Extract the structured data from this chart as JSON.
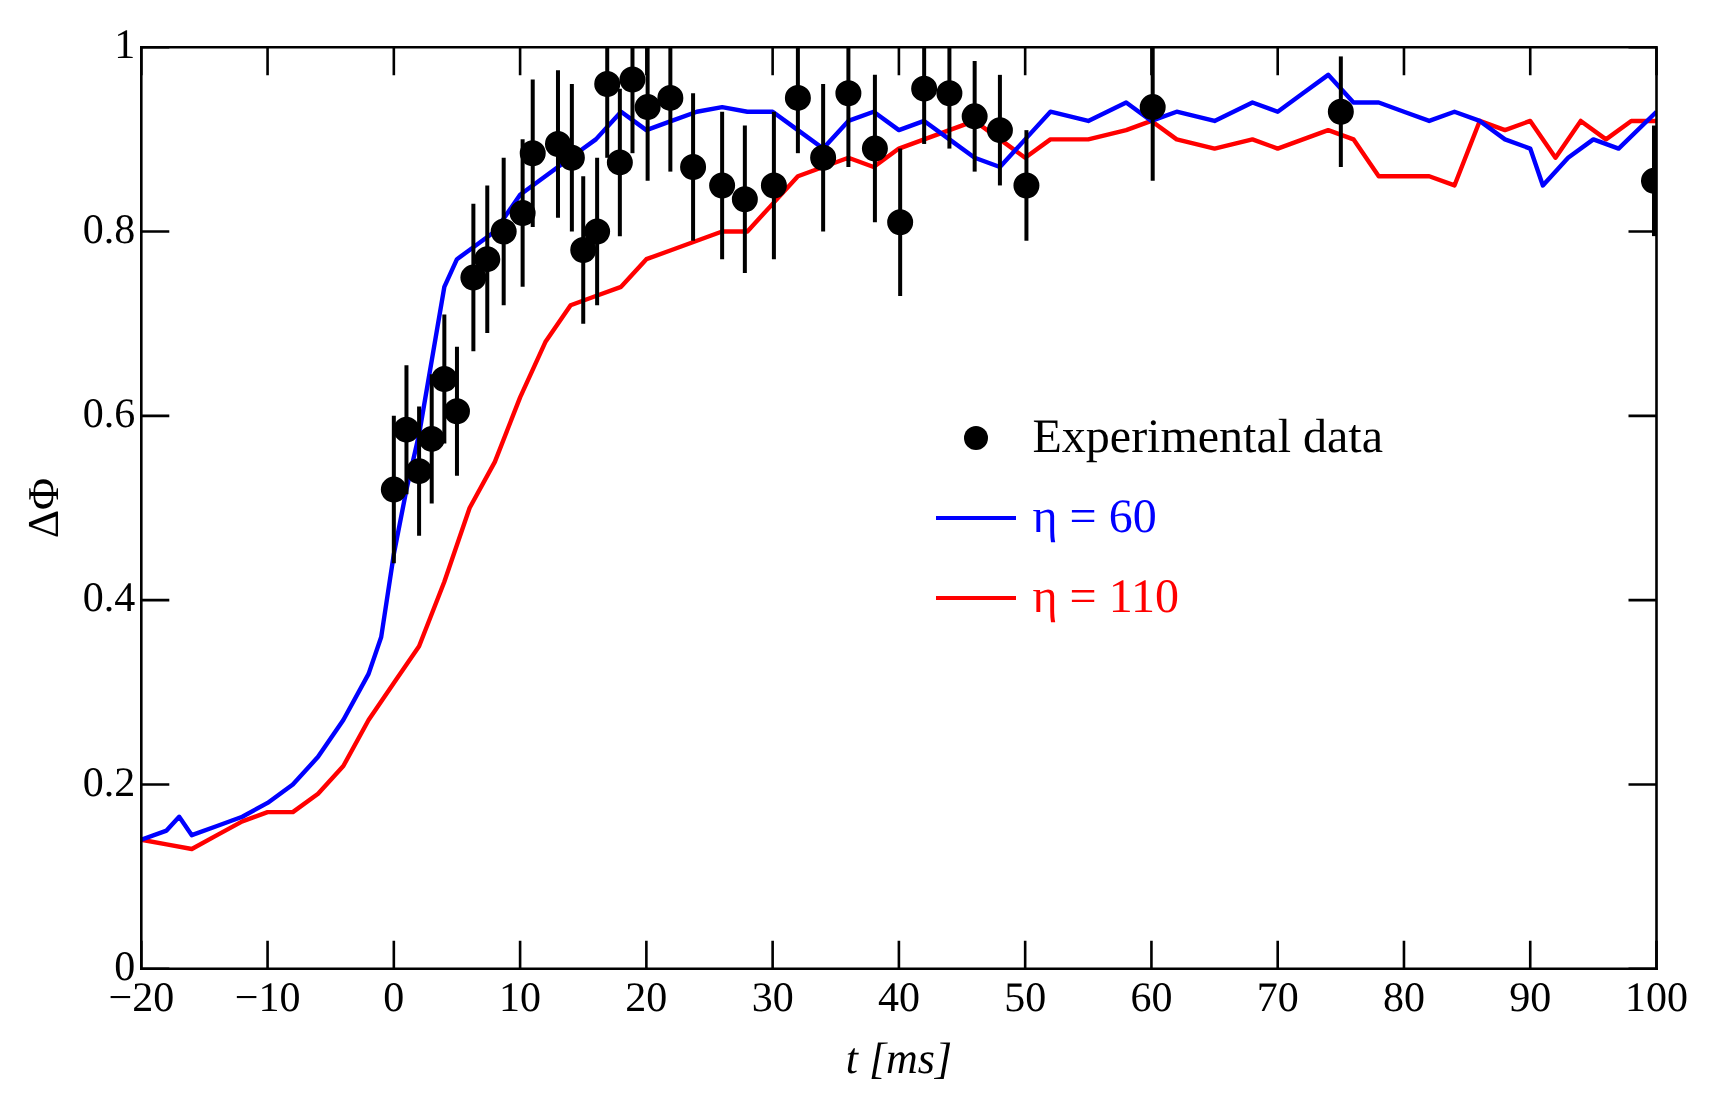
{
  "chart_data": {
    "type": "line",
    "xlabel": "t [ms]",
    "ylabel": "ΔΦ",
    "xlim": [
      -20,
      100
    ],
    "xticks": [
      {
        "value": -20,
        "label": "−20"
      },
      {
        "value": -10,
        "label": "−10"
      },
      0,
      10,
      20,
      30,
      40,
      50,
      60,
      70,
      80,
      90,
      100
    ],
    "ylim": [
      0,
      1
    ],
    "yticks": [
      0,
      0.2,
      0.4,
      0.6,
      0.8,
      1
    ],
    "grid": false,
    "legend": "right",
    "marker": "none",
    "line_style": "solid",
    "series": [
      {
        "name": "Experimental data",
        "type": "scatter",
        "marker": "circle",
        "color": "#000000",
        "x": [
          0,
          1,
          2,
          3,
          4,
          5,
          6.3,
          7.4,
          8.7,
          10.2,
          11,
          13,
          14.1,
          15,
          16.1,
          16.9,
          17.9,
          18.9,
          20.1,
          21.9,
          23.7,
          26,
          27.8,
          30.1,
          32,
          34,
          36,
          38.1,
          40.1,
          42,
          44,
          46,
          48,
          50.1,
          60.1,
          75,
          99.8
        ],
        "values": [
          0.52,
          0.585,
          0.54,
          0.575,
          0.64,
          0.605,
          0.75,
          0.77,
          0.8,
          0.82,
          0.885,
          0.895,
          0.88,
          0.78,
          0.8,
          0.96,
          0.875,
          0.965,
          0.935,
          0.945,
          0.87,
          0.85,
          0.835,
          0.85,
          0.945,
          0.88,
          0.95,
          0.89,
          0.81,
          0.955,
          0.95,
          0.925,
          0.91,
          0.85,
          0.935,
          0.93,
          0.855
        ],
        "errors": [
          0.08,
          0.07,
          0.07,
          0.07,
          0.07,
          0.07,
          0.08,
          0.08,
          0.08,
          0.08,
          0.08,
          0.08,
          0.08,
          0.08,
          0.08,
          [
            0.88,
            1
          ],
          0.08,
          [
            0.885,
            1
          ],
          [
            0.855,
            1
          ],
          [
            0.865,
            1
          ],
          0.08,
          0.08,
          0.08,
          0.08,
          [
            0.885,
            1
          ],
          0.08,
          [
            0.87,
            1
          ],
          0.08,
          0.08,
          [
            0.895,
            1
          ],
          [
            0.89,
            1
          ],
          0.06,
          0.06,
          0.06,
          [
            0.855,
            1
          ],
          0.06,
          0.06
        ]
      },
      {
        "name": "η = 60",
        "color": "#0000ff",
        "x": [
          -20,
          -18,
          -17,
          -16,
          -14,
          -12,
          -10,
          -8,
          -6,
          -4,
          -2,
          -1,
          0,
          1,
          2,
          3,
          4,
          5,
          6,
          8,
          10,
          12,
          15,
          16,
          18,
          20,
          22,
          24,
          26,
          28,
          30,
          32,
          34,
          36,
          38,
          40,
          42,
          44,
          46,
          48,
          50,
          52,
          55,
          58,
          60,
          62,
          65,
          68,
          70,
          72,
          74,
          76,
          78,
          80,
          82,
          84,
          86,
          88,
          90,
          91,
          93,
          95,
          97,
          100
        ],
        "values": [
          0.14,
          0.15,
          0.165,
          0.145,
          0.155,
          0.165,
          0.18,
          0.2,
          0.23,
          0.27,
          0.32,
          0.36,
          0.45,
          0.52,
          0.58,
          0.66,
          0.74,
          0.77,
          0.78,
          0.8,
          0.84,
          0.86,
          0.89,
          0.9,
          0.93,
          0.91,
          0.92,
          0.93,
          0.935,
          0.93,
          0.93,
          0.91,
          0.89,
          0.92,
          0.93,
          0.91,
          0.92,
          0.9,
          0.88,
          0.87,
          0.9,
          0.93,
          0.92,
          0.94,
          0.92,
          0.93,
          0.92,
          0.94,
          0.93,
          0.95,
          0.97,
          0.94,
          0.94,
          0.93,
          0.92,
          0.93,
          0.92,
          0.9,
          0.89,
          0.85,
          0.88,
          0.9,
          0.89,
          0.93
        ]
      },
      {
        "name": "η = 110",
        "color": "#ff0000",
        "x": [
          -20,
          -18,
          -16,
          -14,
          -12,
          -10,
          -8,
          -6,
          -4,
          -2,
          0,
          2,
          4,
          6,
          8,
          10,
          12,
          14,
          16,
          18,
          20,
          22,
          24,
          26,
          28,
          30,
          32,
          34,
          36,
          38,
          40,
          42,
          44,
          46,
          48,
          50,
          52,
          55,
          58,
          60,
          62,
          65,
          68,
          70,
          72,
          74,
          76,
          78,
          80,
          82,
          84,
          86,
          88,
          90,
          92,
          94,
          96,
          98,
          100
        ],
        "values": [
          0.14,
          0.135,
          0.13,
          0.145,
          0.16,
          0.17,
          0.17,
          0.19,
          0.22,
          0.27,
          0.31,
          0.35,
          0.42,
          0.5,
          0.55,
          0.62,
          0.68,
          0.72,
          0.73,
          0.74,
          0.77,
          0.78,
          0.79,
          0.8,
          0.8,
          0.83,
          0.86,
          0.87,
          0.88,
          0.87,
          0.89,
          0.9,
          0.91,
          0.92,
          0.9,
          0.88,
          0.9,
          0.9,
          0.91,
          0.92,
          0.9,
          0.89,
          0.9,
          0.89,
          0.9,
          0.91,
          0.9,
          0.86,
          0.86,
          0.86,
          0.85,
          0.92,
          0.91,
          0.92,
          0.88,
          0.92,
          0.9,
          0.92,
          0.92
        ]
      }
    ]
  }
}
